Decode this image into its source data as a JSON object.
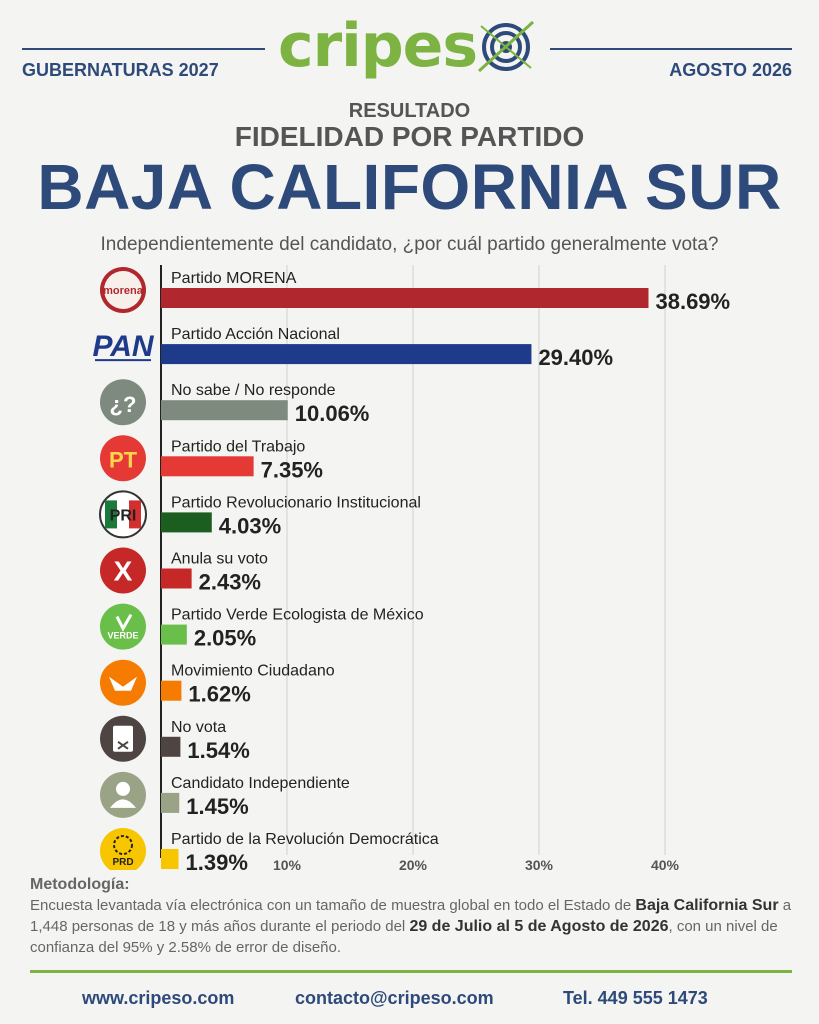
{
  "header": {
    "left_tag": "GUBERNATURAS 2027",
    "right_tag": "AGOSTO 2026",
    "logo_part1": "cripes",
    "logo_part2": "",
    "colors": {
      "navy": "#2e4a7a",
      "green": "#7cb342"
    }
  },
  "titles": {
    "subtitle1": "RESULTADO",
    "subtitle2": "FIDELIDAD POR PARTIDO",
    "state": "BAJA CALIFORNIA SUR",
    "question": "Independientemente del candidato, ¿por cuál partido generalmente vota?"
  },
  "chart_data": {
    "type": "bar",
    "orientation": "horizontal",
    "categories": [
      "Partido MORENA",
      "Partido Acción Nacional",
      "No sabe / No responde",
      "Partido del Trabajo",
      "Partido Revolucionario Institucional",
      "Anula su voto",
      "Partido Verde Ecologista de México",
      "Movimiento Ciudadano",
      "No vota",
      "Candidato Independiente",
      "Partido de la Revolución Democrática"
    ],
    "values": [
      38.69,
      29.4,
      10.06,
      7.35,
      4.03,
      2.43,
      2.05,
      1.62,
      1.54,
      1.45,
      1.39
    ],
    "value_labels": [
      "38.69%",
      "29.40%",
      "10.06%",
      "7.35%",
      "4.03%",
      "2.43%",
      "2.05%",
      "1.62%",
      "1.54%",
      "1.45%",
      "1.39%"
    ],
    "colors": [
      "#b0272d",
      "#1e3a8a",
      "#7d8a7d",
      "#e53935",
      "#1b5e20",
      "#c62828",
      "#6abf4b",
      "#f57c00",
      "#4e4542",
      "#9aa386",
      "#f7c600"
    ],
    "icons": [
      "morena-logo-icon",
      "pan-logo-icon",
      "question-icon",
      "pt-logo-icon",
      "pri-logo-icon",
      "cross-icon",
      "verde-logo-icon",
      "mc-logo-icon",
      "ballot-icon",
      "person-icon",
      "prd-logo-icon"
    ],
    "icon_texts": [
      "morena",
      "PAN",
      "¿?",
      "PT",
      "PRI",
      "X",
      "VERDE",
      "",
      "",
      "",
      "PRD"
    ],
    "xticks": [
      10,
      20,
      30,
      40
    ],
    "xtick_labels": [
      "10%",
      "20%",
      "30%",
      "40%"
    ],
    "xlim": [
      0,
      43
    ],
    "grid": true
  },
  "methodology": {
    "title": "Metodología:",
    "text1": "Encuesta levantada vía electrónica con un tamaño de muestra global en todo el Estado de ",
    "bold1": "Baja California Sur",
    "text2": " a 1,448 personas de 18 y más años durante el periodo del ",
    "bold2": "29 de Julio al 5 de Agosto de 2026",
    "text3": ", con un nivel de confianza del 95% y 2.58% de error de diseño."
  },
  "footer": {
    "web": "www.cripeso.com",
    "email": "contacto@cripeso.com",
    "phone": "Tel. 449 555 1473"
  }
}
